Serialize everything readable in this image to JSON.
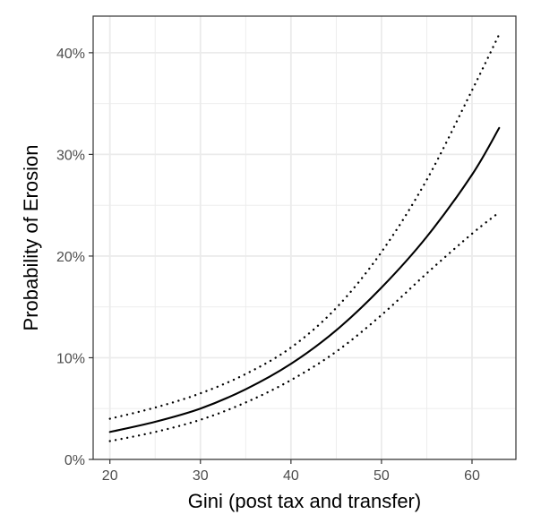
{
  "chart_data": {
    "type": "line",
    "title": "",
    "xlabel": "Gini (post tax and transfer)",
    "ylabel": "Probability of Erosion",
    "xlim": [
      18.15,
      64.85
    ],
    "ylim": [
      0,
      43.6
    ],
    "x_ticks": [
      20,
      30,
      40,
      50,
      60
    ],
    "x_tick_labels": [
      "20",
      "30",
      "40",
      "50",
      "60"
    ],
    "y_ticks": [
      0,
      10,
      20,
      30,
      40
    ],
    "y_tick_labels": [
      "0%",
      "10%",
      "20%",
      "30%",
      "40%"
    ],
    "grid": true,
    "legend": "none",
    "colors": {
      "line": "#000000",
      "grid": "#ebebeb",
      "panel_border": "#333333",
      "tick_label": "#4d4d4d"
    },
    "series": [
      {
        "style": "solid",
        "x": [
          20,
          25,
          30,
          35,
          40,
          45,
          50,
          55,
          60,
          63
        ],
        "values": [
          2.7,
          3.7,
          5.0,
          6.9,
          9.4,
          12.7,
          16.9,
          21.9,
          28.0,
          32.6
        ]
      },
      {
        "style": "dotted",
        "x": [
          20,
          25,
          30,
          35,
          40,
          45,
          50,
          55,
          60,
          63
        ],
        "values": [
          4.0,
          5.1,
          6.5,
          8.4,
          11.0,
          14.9,
          20.4,
          27.5,
          36.3,
          41.8
        ]
      },
      {
        "style": "dotted",
        "x": [
          20,
          25,
          30,
          35,
          40,
          45,
          50,
          55,
          60,
          63
        ],
        "values": [
          1.8,
          2.7,
          3.9,
          5.6,
          7.8,
          10.6,
          14.2,
          18.3,
          22.2,
          24.3
        ]
      }
    ]
  }
}
